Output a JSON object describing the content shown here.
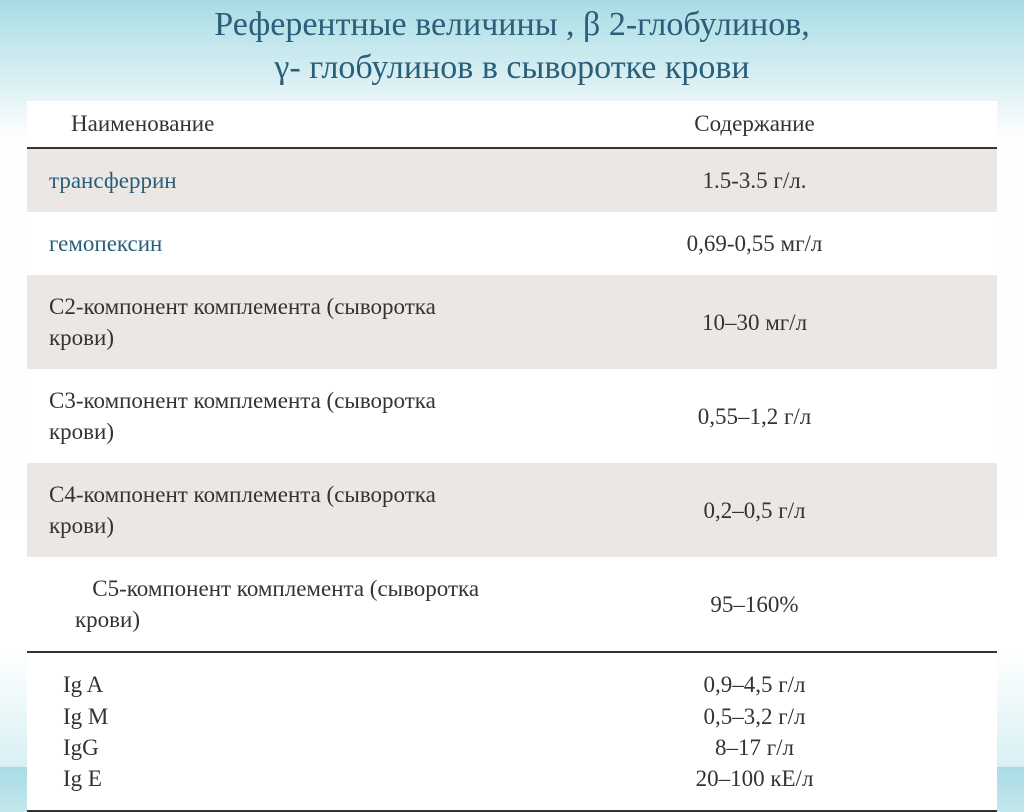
{
  "title_line1": "Референтные величины , β 2-глобулинов,",
  "title_line2": "γ- глобулинов     в     сыворотке крови",
  "header": {
    "col1": "Наименование",
    "col2": "Содержание"
  },
  "rows": [
    {
      "name": "трансферрин",
      "value": "1.5-3.5 г/л."
    },
    {
      "name": "гемопексин",
      "value": "0,69-0,55 мг/л"
    },
    {
      "name": "С2-компонент комплемента (сыворотка крови)",
      "value": "10–30 мг/л"
    },
    {
      "name": "С3-компонент комплемента (сыворотка крови)",
      "value": "0,55–1,2 г/л"
    },
    {
      "name": "С4-компонент комплемента (сыворотка крови)",
      "value": "0,2–0,5 г/л"
    },
    {
      "name": "   С5-компонент комплемента (сыворотка крови)",
      "value": "95–160%"
    }
  ],
  "ig_row": {
    "names": "Ig A\nIg M\nIgG\nIg E",
    "values": "0,9–4,5 г/л\n0,5–3,2 г/л\n8–17 г/л\n20–100 кЕ/л"
  }
}
